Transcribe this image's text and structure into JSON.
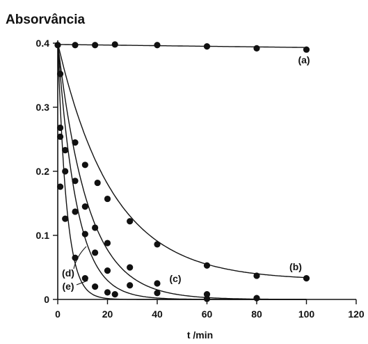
{
  "chart_data": {
    "type": "scatter",
    "title": "",
    "ylabel": "Absorvância",
    "xlabel": "t /min",
    "xlim": [
      0,
      120
    ],
    "ylim": [
      0,
      0.4
    ],
    "xticks": [
      0,
      20,
      40,
      60,
      80,
      100,
      120
    ],
    "yticks": [
      0,
      0.1,
      0.2,
      0.3,
      0.4
    ],
    "ytick_labels": [
      "0",
      "0.1",
      "0.2",
      "0.3",
      "0.4"
    ],
    "grid": false,
    "series": [
      {
        "name": "(a)",
        "x": [
          0,
          7,
          15,
          23,
          40,
          60,
          80,
          100
        ],
        "y": [
          0.397,
          0.397,
          0.397,
          0.398,
          0.397,
          0.395,
          0.392,
          0.39
        ]
      },
      {
        "name": "(b)",
        "x": [
          1,
          7,
          11,
          16,
          20,
          29,
          40,
          60,
          80,
          100
        ],
        "y": [
          0.352,
          0.245,
          0.21,
          0.182,
          0.157,
          0.122,
          0.086,
          0.053,
          0.037,
          0.033
        ]
      },
      {
        "name": "(c)",
        "x": [
          1,
          3,
          7,
          11,
          15,
          20,
          29,
          40,
          60,
          80
        ],
        "y": [
          0.268,
          0.233,
          0.185,
          0.145,
          0.112,
          0.088,
          0.05,
          0.025,
          0.008,
          0.002
        ]
      },
      {
        "name": "(d)",
        "x": [
          1,
          3,
          7,
          11,
          15,
          20,
          29,
          40,
          60
        ],
        "y": [
          0.254,
          0.2,
          0.137,
          0.102,
          0.073,
          0.045,
          0.022,
          0.01,
          0.001
        ]
      },
      {
        "name": "(e)",
        "x": [
          1,
          3,
          7,
          11,
          15,
          20,
          23
        ],
        "y": [
          0.176,
          0.126,
          0.065,
          0.033,
          0.02,
          0.011,
          0.008
        ]
      }
    ],
    "curves": [
      {
        "series": "(a)",
        "y0": 0.398,
        "yinf": 0.0,
        "k": 0.00012
      },
      {
        "series": "(b)",
        "y0": 0.4,
        "yinf": 0.03,
        "k": 0.045
      },
      {
        "series": "(c)",
        "y0": 0.4,
        "yinf": 0.0,
        "k": 0.082
      },
      {
        "series": "(d)",
        "y0": 0.4,
        "yinf": 0.0,
        "k": 0.13
      },
      {
        "series": "(e)",
        "y0": 0.4,
        "yinf": 0.0,
        "k": 0.28
      }
    ]
  }
}
